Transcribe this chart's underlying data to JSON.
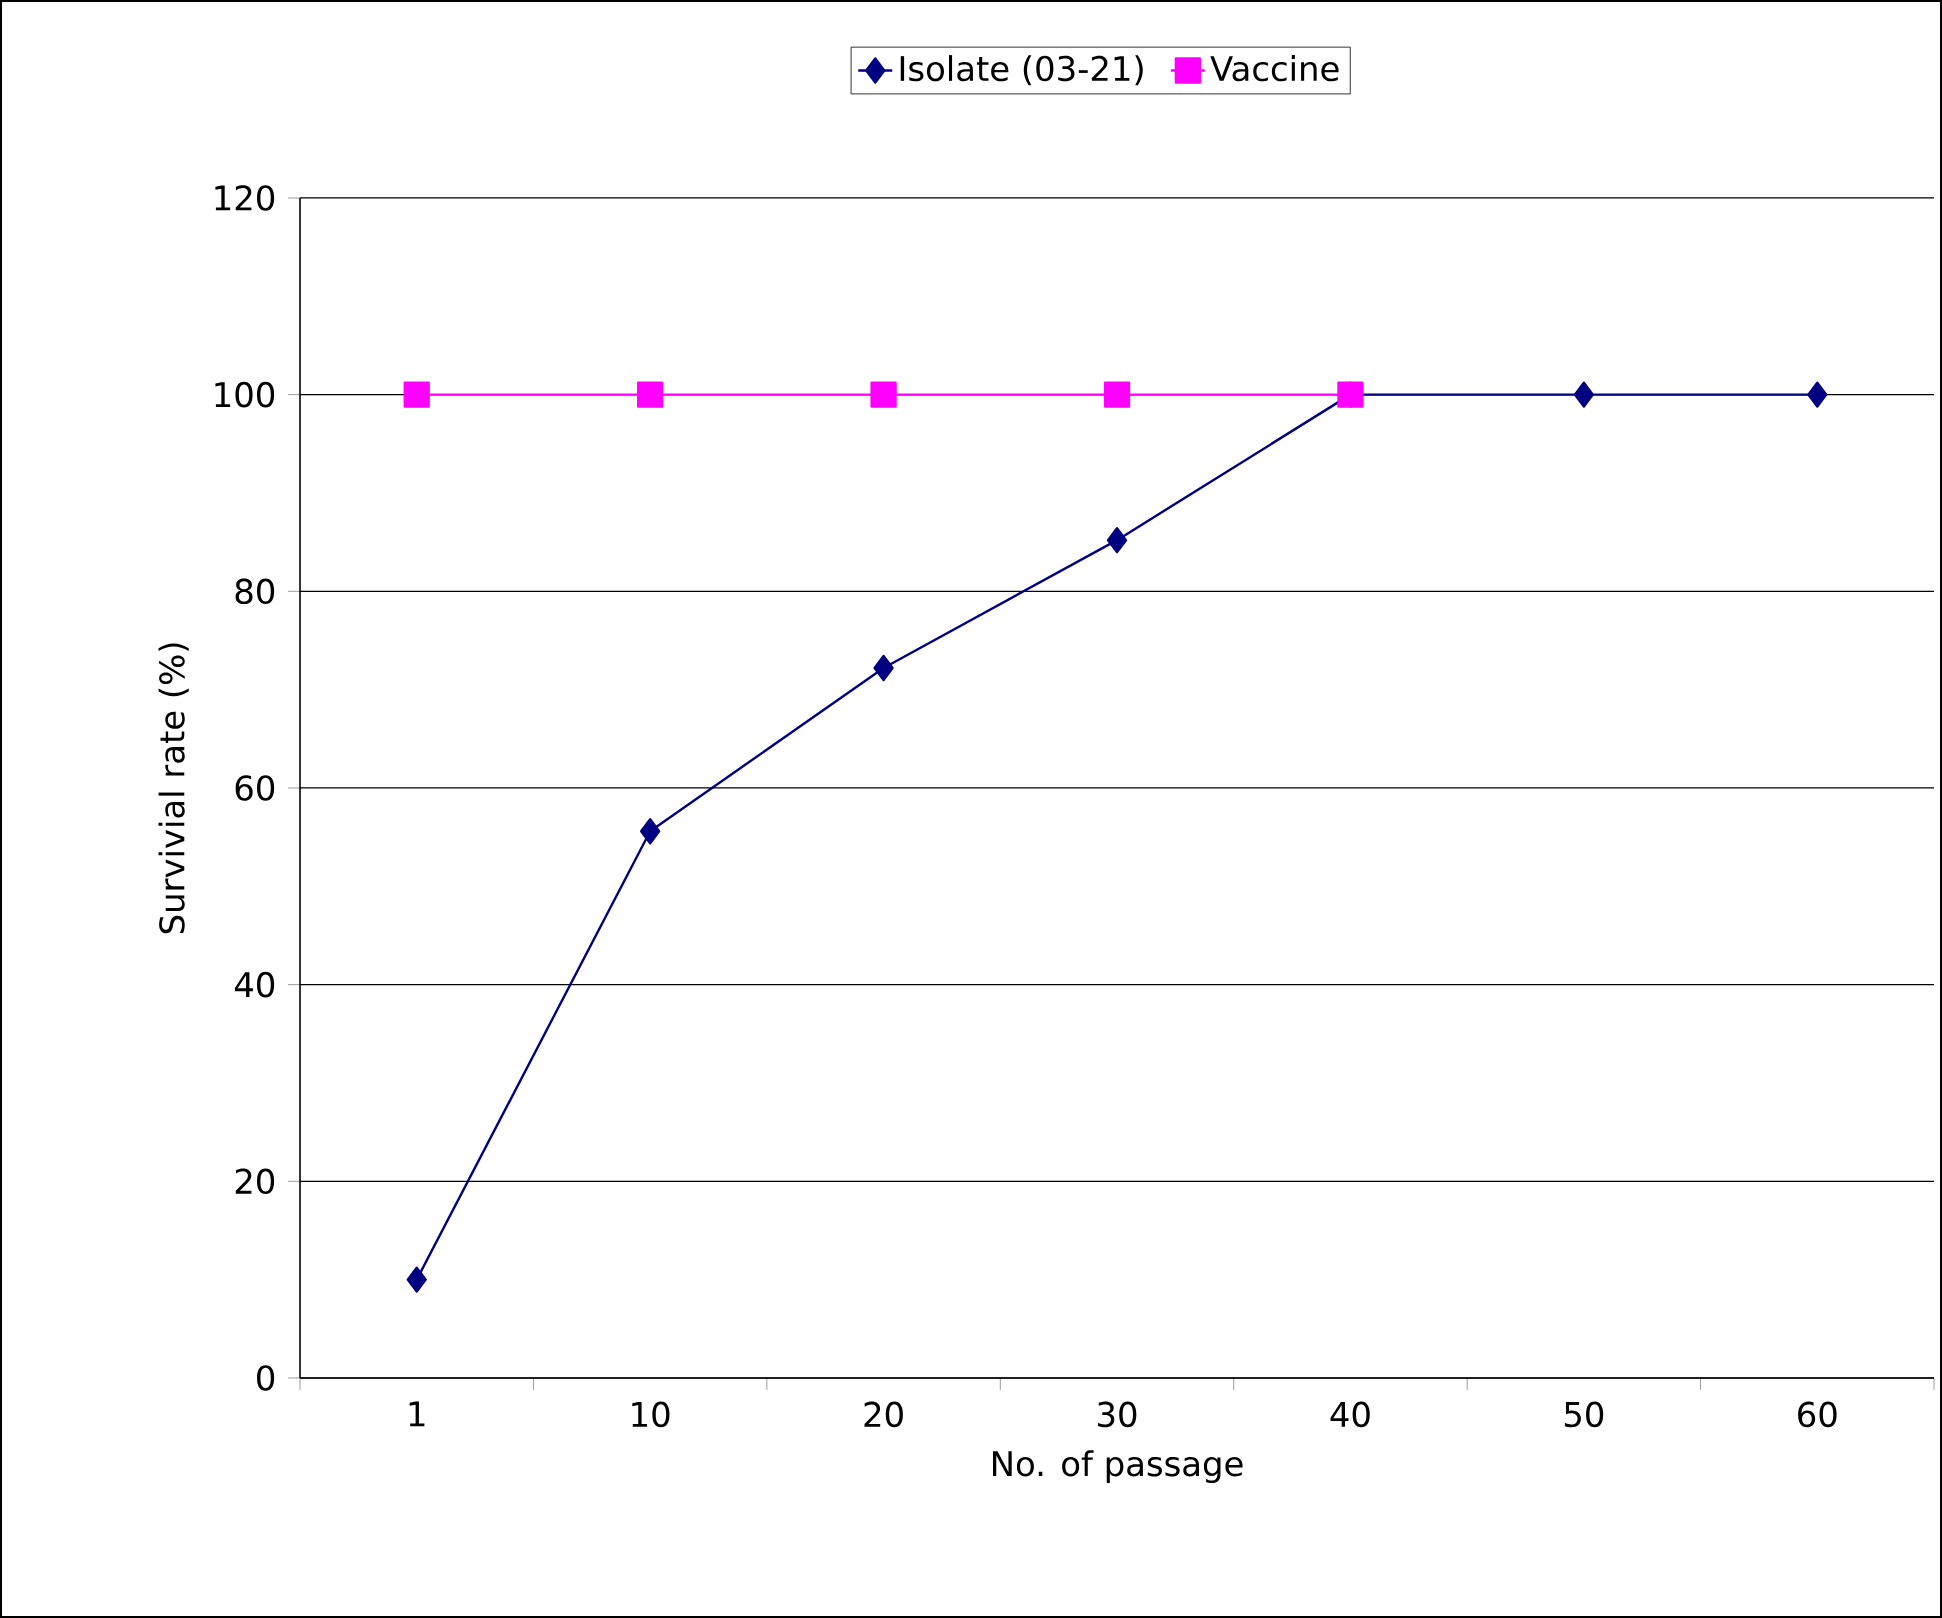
{
  "chart_data": {
    "type": "line",
    "xlabel": "No. of passage",
    "ylabel": "Survivial rate (%)",
    "categories": [
      "1",
      "10",
      "20",
      "30",
      "40",
      "50",
      "60"
    ],
    "series": [
      {
        "name": "Isolate (03-21)",
        "color": "#000080",
        "marker": "diamond",
        "values": [
          10,
          55.6,
          72.2,
          85.2,
          100,
          100,
          100
        ]
      },
      {
        "name": "Vaccine",
        "color": "#ff00ff",
        "marker": "square",
        "values": [
          100,
          100,
          100,
          100,
          100,
          null,
          null
        ]
      }
    ],
    "ylim": [
      0,
      120
    ],
    "yticks": [
      0,
      20,
      40,
      60,
      80,
      100,
      120
    ],
    "grid": "y",
    "legend": "top",
    "line_style": "solid"
  }
}
